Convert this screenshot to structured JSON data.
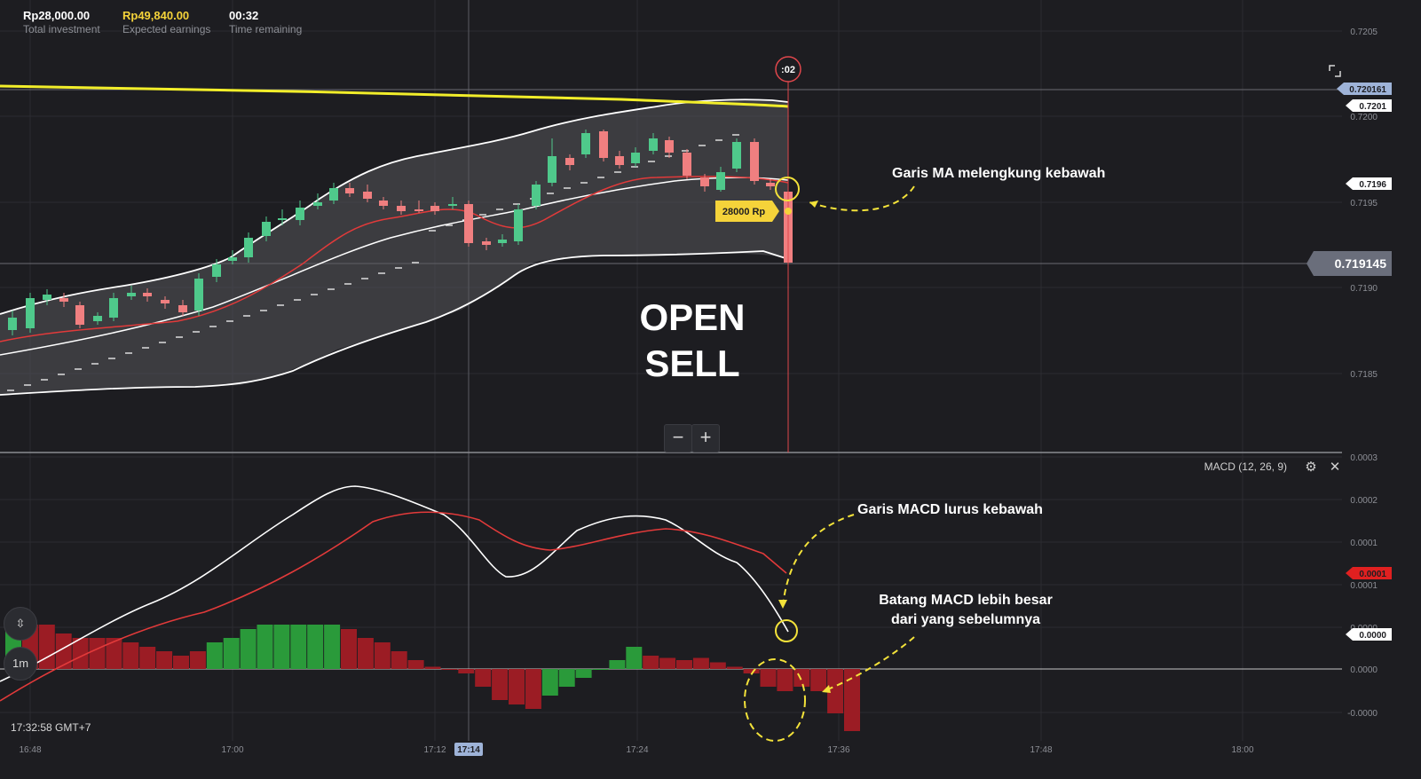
{
  "hud": {
    "investment_value": "Rp28,000.00",
    "investment_label": "Total investment",
    "earnings_value": "Rp49,840.00",
    "earnings_label": "Expected earnings",
    "time_value": "00:32",
    "time_label": "Time remaining"
  },
  "chart": {
    "timer_badge": ":02",
    "deal_label": "28000 Rp",
    "current_price": "0.719145",
    "line_price_tag": "0.720161",
    "open_price_tag": "0.7201",
    "entry_price_tag": "0.7196",
    "price_ticks": [
      "0.7205",
      "0.7200",
      "0.7195",
      "0.7190",
      "0.7185"
    ],
    "time_ticks": [
      "16:48",
      "17:00",
      "17:12",
      "17:14",
      "17:24",
      "17:36",
      "17:48",
      "18:00"
    ],
    "highlight_time": "17:14",
    "overlay_title_line1": "OPEN",
    "overlay_title_line2": "SELL",
    "annotation_ma": "Garis MA melengkung kebawah",
    "colors": {
      "up": "#4fc98b",
      "down": "#f07f80",
      "ma_yellow": "#f2ee2a",
      "annotation": "#f3e23a"
    }
  },
  "zoom": {
    "minus_label": "−",
    "plus_label": "+"
  },
  "macd": {
    "title": "MACD (12, 26, 9)",
    "ticks": [
      "0.0003",
      "0.0002",
      "0.0001",
      "0.0001",
      "0.0000",
      "0.0000",
      "-0.0000"
    ],
    "signal_tag": "0.0001",
    "macd_tag": "0.0000",
    "annotation_line": "Garis MACD lurus kebawah",
    "annotation_bar_line1": "Batang MACD lebih besar",
    "annotation_bar_line2": "dari yang sebelumnya",
    "histogram": [
      0.9,
      1.0,
      1.0,
      0.8,
      0.7,
      0.7,
      0.7,
      0.6,
      0.5,
      0.4,
      0.3,
      0.4,
      0.6,
      0.7,
      0.9,
      1.0,
      1.0,
      1.0,
      1.0,
      1.0,
      0.9,
      0.7,
      0.6,
      0.4,
      0.2,
      0.05,
      0.0,
      -0.1,
      -0.4,
      -0.7,
      -0.8,
      -0.9,
      -0.6,
      -0.4,
      -0.2,
      0.0,
      0.2,
      0.5,
      0.3,
      0.25,
      0.2,
      0.25,
      0.15,
      0.05,
      -0.1,
      -0.4,
      -0.5,
      -0.4,
      -0.5,
      -1.0,
      -1.4
    ]
  },
  "sidebar": {
    "drawing_icon_label": "⇳",
    "timeframe_label": "1m"
  },
  "footer": {
    "clock": "17:32:58 GMT+7"
  }
}
